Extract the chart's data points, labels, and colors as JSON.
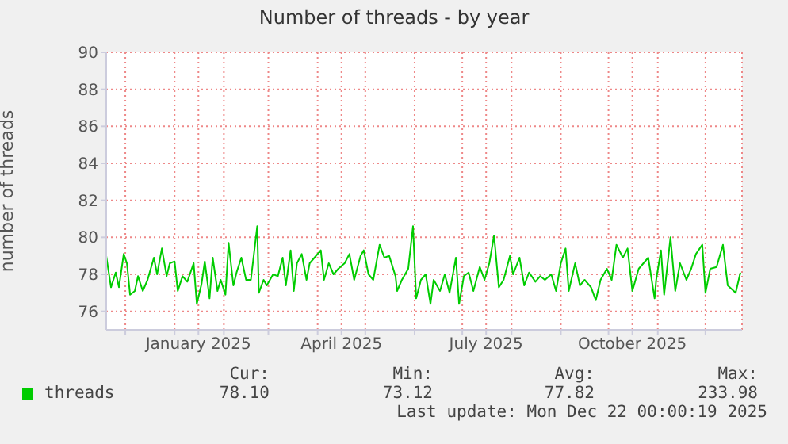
{
  "chart_data": {
    "type": "line",
    "title": "Number of threads - by year",
    "ylabel": "number of threads",
    "xlim": [
      "2024-11-19",
      "2025-12-24"
    ],
    "ylim": [
      75,
      90
    ],
    "yticks": [
      76,
      78,
      80,
      82,
      84,
      86,
      88,
      90
    ],
    "xticks": [
      {
        "value": "2024-12-01",
        "label": null
      },
      {
        "value": "2025-01-01",
        "label": null
      },
      {
        "value": "2025-01-16",
        "label": "January 2025"
      },
      {
        "value": "2025-02-01",
        "label": null
      },
      {
        "value": "2025-03-01",
        "label": null
      },
      {
        "value": "2025-04-01",
        "label": null
      },
      {
        "value": "2025-04-16",
        "label": "April 2025"
      },
      {
        "value": "2025-05-01",
        "label": null
      },
      {
        "value": "2025-06-01",
        "label": null
      },
      {
        "value": "2025-07-01",
        "label": null
      },
      {
        "value": "2025-07-16",
        "label": "July 2025"
      },
      {
        "value": "2025-08-01",
        "label": null
      },
      {
        "value": "2025-09-01",
        "label": null
      },
      {
        "value": "2025-10-01",
        "label": null
      },
      {
        "value": "2025-10-16",
        "label": "October 2025"
      },
      {
        "value": "2025-11-01",
        "label": null
      },
      {
        "value": "2025-12-01",
        "label": null
      }
    ],
    "grid": true,
    "legend": "bottom",
    "marker": "none",
    "line_style": "solid",
    "x": [
      "2024-11-19",
      "2024-11-22",
      "2024-11-25",
      "2024-11-27",
      "2024-11-30",
      "2024-12-02",
      "2024-12-04",
      "2024-12-07",
      "2024-12-09",
      "2024-12-12",
      "2024-12-15",
      "2024-12-19",
      "2024-12-21",
      "2024-12-24",
      "2024-12-27",
      "2024-12-29",
      "2025-01-01",
      "2025-01-03",
      "2025-01-06",
      "2025-01-09",
      "2025-01-13",
      "2025-01-15",
      "2025-01-18",
      "2025-01-20",
      "2025-01-23",
      "2025-01-25",
      "2025-01-28",
      "2025-01-30",
      "2025-02-02",
      "2025-02-04",
      "2025-02-07",
      "2025-02-09",
      "2025-02-12",
      "2025-02-15",
      "2025-02-18",
      "2025-02-22",
      "2025-02-23",
      "2025-02-26",
      "2025-02-28",
      "2025-03-04",
      "2025-03-07",
      "2025-03-10",
      "2025-03-12",
      "2025-03-15",
      "2025-03-17",
      "2025-03-19",
      "2025-03-22",
      "2025-03-25",
      "2025-03-27",
      "2025-03-30",
      "2025-04-03",
      "2025-04-05",
      "2025-04-08",
      "2025-04-11",
      "2025-04-14",
      "2025-04-18",
      "2025-04-21",
      "2025-04-24",
      "2025-04-28",
      "2025-04-30",
      "2025-05-03",
      "2025-05-06",
      "2025-05-10",
      "2025-05-13",
      "2025-05-16",
      "2025-05-20",
      "2025-05-21",
      "2025-05-24",
      "2025-05-28",
      "2025-05-31",
      "2025-06-02",
      "2025-06-05",
      "2025-06-08",
      "2025-06-11",
      "2025-06-13",
      "2025-06-17",
      "2025-06-20",
      "2025-06-23",
      "2025-06-27",
      "2025-06-29",
      "2025-07-02",
      "2025-07-05",
      "2025-07-08",
      "2025-07-12",
      "2025-07-15",
      "2025-07-18",
      "2025-07-21",
      "2025-07-24",
      "2025-07-27",
      "2025-07-31",
      "2025-08-02",
      "2025-08-06",
      "2025-08-09",
      "2025-08-12",
      "2025-08-16",
      "2025-08-19",
      "2025-08-22",
      "2025-08-26",
      "2025-08-29",
      "2025-09-01",
      "2025-09-04",
      "2025-09-06",
      "2025-09-10",
      "2025-09-13",
      "2025-09-16",
      "2025-09-20",
      "2025-09-23",
      "2025-09-26",
      "2025-09-30",
      "2025-10-03",
      "2025-10-06",
      "2025-10-10",
      "2025-10-13",
      "2025-10-16",
      "2025-10-20",
      "2025-10-23",
      "2025-10-26",
      "2025-10-30",
      "2025-10-31",
      "2025-11-03",
      "2025-11-05",
      "2025-11-09",
      "2025-11-12",
      "2025-11-15",
      "2025-11-19",
      "2025-11-22",
      "2025-11-25",
      "2025-11-29",
      "2025-12-01",
      "2025-12-04",
      "2025-12-08",
      "2025-12-12",
      "2025-12-15",
      "2025-12-20",
      "2025-12-23"
    ],
    "series": [
      {
        "name": "threads",
        "color": "#00cc00",
        "values": [
          79.0,
          77.3,
          78.1,
          77.3,
          79.1,
          78.6,
          76.9,
          77.1,
          77.9,
          77.1,
          77.7,
          78.9,
          78.0,
          79.4,
          77.9,
          78.6,
          78.7,
          77.1,
          77.9,
          77.6,
          78.6,
          76.4,
          77.5,
          78.7,
          76.7,
          78.9,
          77.1,
          77.7,
          76.9,
          79.7,
          77.4,
          78.1,
          78.9,
          77.7,
          77.7,
          80.6,
          77.0,
          77.7,
          77.4,
          78.0,
          77.9,
          78.9,
          77.4,
          79.3,
          77.1,
          78.6,
          79.1,
          77.7,
          78.6,
          78.9,
          79.3,
          77.7,
          78.6,
          78.0,
          78.3,
          78.6,
          79.1,
          77.7,
          79.0,
          79.3,
          78.0,
          77.7,
          79.6,
          78.9,
          79.0,
          77.9,
          77.1,
          77.7,
          78.3,
          80.6,
          76.7,
          77.7,
          78.0,
          76.4,
          77.7,
          77.1,
          78.0,
          77.0,
          78.9,
          76.4,
          77.9,
          78.1,
          77.1,
          78.4,
          77.7,
          78.6,
          80.1,
          77.3,
          77.7,
          79.0,
          78.0,
          78.9,
          77.4,
          78.1,
          77.6,
          77.9,
          77.7,
          78.0,
          77.1,
          78.6,
          79.4,
          77.1,
          78.6,
          77.4,
          77.7,
          77.3,
          76.6,
          77.7,
          78.3,
          77.7,
          79.6,
          78.9,
          79.4,
          77.1,
          78.3,
          78.6,
          78.9,
          76.7,
          77.7,
          79.3,
          76.9,
          80.0,
          77.1,
          78.6,
          77.7,
          78.3,
          79.1,
          79.6,
          77.0,
          78.3,
          78.4,
          79.6,
          77.4,
          77.0,
          78.1
        ]
      }
    ],
    "annotations": [
      "Cur:",
      "78.10",
      "Min:",
      "73.12",
      "Avg:",
      "77.82",
      "Max:",
      "233.98",
      "Last update: Mon Dec 22 00:00:19 2025"
    ]
  }
}
